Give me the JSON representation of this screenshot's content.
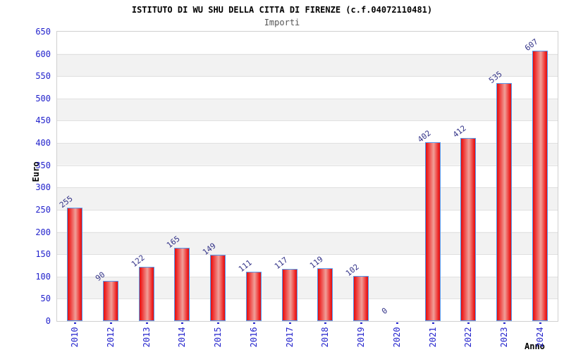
{
  "chart_data": {
    "type": "bar",
    "title": "ISTITUTO DI WU SHU DELLA CITTA DI FIRENZE (c.f.04072110481)",
    "subtitle": "Importi",
    "xlabel": "Anno",
    "ylabel": "Euro",
    "categories": [
      "2010",
      "2012",
      "2013",
      "2014",
      "2015",
      "2016",
      "2017",
      "2018",
      "2019",
      "2020",
      "2021",
      "2022",
      "2023",
      "2024"
    ],
    "values": [
      255,
      90,
      122,
      165,
      149,
      111,
      117,
      119,
      102,
      0,
      402,
      412,
      535,
      607
    ],
    "ylim": [
      0,
      650
    ],
    "ytick_step": 50,
    "grid": true,
    "banded_background": true,
    "legend": "none",
    "colors": {
      "bar_fill_edge": "#dd1111",
      "bar_fill_mid": "#ee2222",
      "bar_fill_highlight": "#f09f98",
      "bar_border": "#5599ee",
      "axis_tick_label": "#2222cc",
      "value_label": "#333388",
      "gridline": "#e0e0e0",
      "band": "#f2f2f2",
      "plot_border": "#d0d0d0",
      "title": "#000000",
      "subtitle": "#555555"
    }
  }
}
